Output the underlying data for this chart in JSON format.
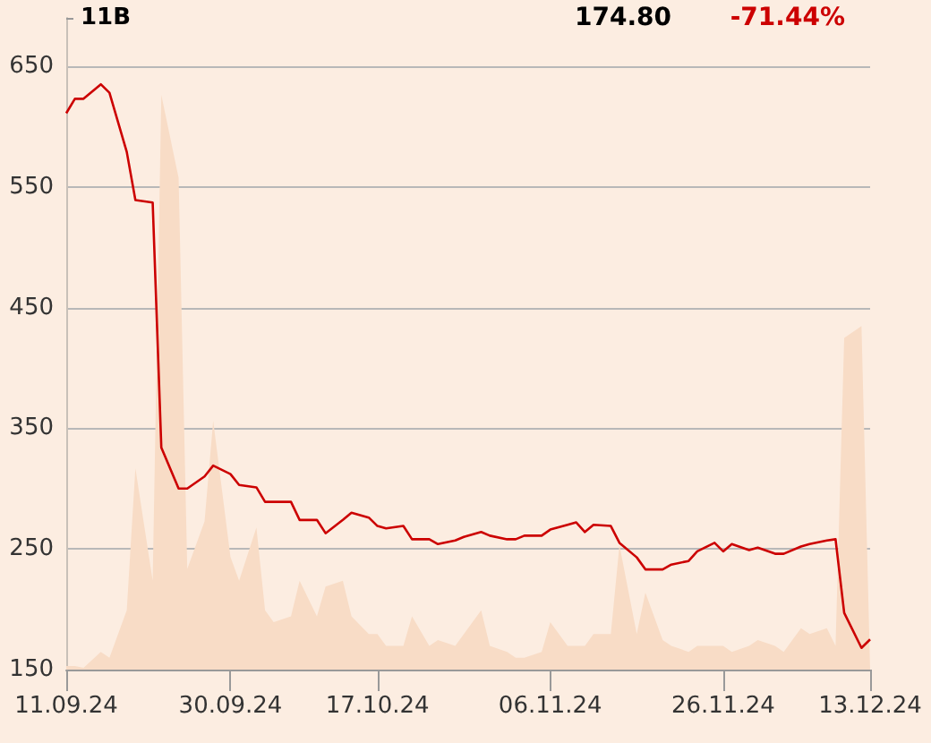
{
  "chart_data": {
    "type": "line",
    "grid": "y",
    "xlim": [
      "2024-09-11",
      "2024-12-13"
    ],
    "xticks": [
      {
        "value": "2024-09-11",
        "label": "11.09.24"
      },
      {
        "value": "2024-09-30",
        "label": "30.09.24"
      },
      {
        "value": "2024-10-17",
        "label": "17.10.24"
      },
      {
        "value": "2024-11-06",
        "label": "06.11.24"
      },
      {
        "value": "2024-11-26",
        "label": "26.11.24"
      },
      {
        "value": "2024-12-13",
        "label": "13.12.24"
      }
    ],
    "ylim": [
      150,
      690
    ],
    "yticks": [
      150,
      250,
      350,
      450,
      550,
      650
    ],
    "y2lim": [
      0,
      11
    ],
    "y2ticks": [
      {
        "value": 0,
        "label": null
      },
      {
        "value": 11,
        "label": "11B"
      }
    ],
    "annotations": [
      "174.80",
      "-71.44%"
    ],
    "series": [
      {
        "type": "area",
        "axis": "y2",
        "color": "#f8dcc6",
        "x": [
          "2024-09-11",
          "2024-09-12",
          "2024-09-13",
          "2024-09-15",
          "2024-09-16",
          "2024-09-18",
          "2024-09-19",
          "2024-09-21",
          "2024-09-22",
          "2024-09-24",
          "2024-09-25",
          "2024-09-27",
          "2024-09-28",
          "2024-09-30",
          "2024-10-01",
          "2024-10-03",
          "2024-10-04",
          "2024-10-05",
          "2024-10-07",
          "2024-10-08",
          "2024-10-10",
          "2024-10-11",
          "2024-10-13",
          "2024-10-14",
          "2024-10-16",
          "2024-10-17",
          "2024-10-18",
          "2024-10-20",
          "2024-10-21",
          "2024-10-23",
          "2024-10-24",
          "2024-10-26",
          "2024-10-27",
          "2024-10-29",
          "2024-10-30",
          "2024-11-01",
          "2024-11-02",
          "2024-11-03",
          "2024-11-05",
          "2024-11-06",
          "2024-11-08",
          "2024-11-09",
          "2024-11-10",
          "2024-11-11",
          "2024-11-13",
          "2024-11-14",
          "2024-11-16",
          "2024-11-17",
          "2024-11-19",
          "2024-11-20",
          "2024-11-22",
          "2024-11-23",
          "2024-11-25",
          "2024-11-26",
          "2024-11-27",
          "2024-11-29",
          "2024-11-30",
          "2024-12-02",
          "2024-12-03",
          "2024-12-05",
          "2024-12-06",
          "2024-12-08",
          "2024-12-09",
          "2024-12-10",
          "2024-12-12",
          "2024-12-13"
        ],
        "values": [
          0.06,
          0.06,
          0.03,
          0.3,
          0.2,
          1.0,
          3.4,
          1.5,
          9.7,
          8.3,
          1.7,
          2.5,
          4.2,
          1.9,
          1.5,
          2.4,
          1.0,
          0.8,
          0.9,
          1.5,
          0.9,
          1.4,
          1.5,
          0.9,
          0.6,
          0.6,
          0.4,
          0.4,
          0.9,
          0.4,
          0.5,
          0.4,
          0.6,
          1.0,
          0.4,
          0.3,
          0.2,
          0.2,
          0.3,
          0.8,
          0.4,
          0.4,
          0.4,
          0.6,
          0.6,
          2.1,
          0.6,
          1.3,
          0.5,
          0.4,
          0.3,
          0.4,
          0.4,
          0.4,
          0.3,
          0.4,
          0.5,
          0.4,
          0.3,
          0.7,
          0.6,
          0.7,
          0.4,
          5.6,
          5.8,
          0
        ]
      },
      {
        "type": "line",
        "color": "#cc0000",
        "x": [
          "2024-09-11",
          "2024-09-12",
          "2024-09-13",
          "2024-09-15",
          "2024-09-16",
          "2024-09-18",
          "2024-09-19",
          "2024-09-21",
          "2024-09-22",
          "2024-09-24",
          "2024-09-25",
          "2024-09-27",
          "2024-09-28",
          "2024-09-30",
          "2024-10-01",
          "2024-10-03",
          "2024-10-04",
          "2024-10-05",
          "2024-10-07",
          "2024-10-08",
          "2024-10-10",
          "2024-10-11",
          "2024-10-13",
          "2024-10-14",
          "2024-10-16",
          "2024-10-17",
          "2024-10-18",
          "2024-10-20",
          "2024-10-21",
          "2024-10-23",
          "2024-10-24",
          "2024-10-26",
          "2024-10-27",
          "2024-10-29",
          "2024-10-30",
          "2024-11-01",
          "2024-11-02",
          "2024-11-03",
          "2024-11-05",
          "2024-11-06",
          "2024-11-08",
          "2024-11-09",
          "2024-11-10",
          "2024-11-11",
          "2024-11-13",
          "2024-11-14",
          "2024-11-16",
          "2024-11-17",
          "2024-11-19",
          "2024-11-20",
          "2024-11-22",
          "2024-11-23",
          "2024-11-25",
          "2024-11-26",
          "2024-11-27",
          "2024-11-29",
          "2024-11-30",
          "2024-12-02",
          "2024-12-03",
          "2024-12-05",
          "2024-12-06",
          "2024-12-08",
          "2024-12-09",
          "2024-12-10",
          "2024-12-12",
          "2024-12-13"
        ],
        "values": [
          611,
          623,
          623,
          635,
          628,
          579,
          539,
          537,
          334,
          300,
          300,
          310,
          319,
          312,
          303,
          301,
          289,
          289,
          289,
          274,
          274,
          263,
          274,
          280,
          276,
          269,
          267,
          269,
          258,
          258,
          254,
          257,
          260,
          264,
          261,
          258,
          258,
          261,
          261,
          266,
          270,
          272,
          264,
          270,
          269,
          255,
          243,
          233,
          233,
          237,
          240,
          248,
          255,
          248,
          254,
          249,
          251,
          246,
          246,
          252,
          254,
          257,
          258,
          197,
          168,
          175
        ]
      }
    ]
  }
}
